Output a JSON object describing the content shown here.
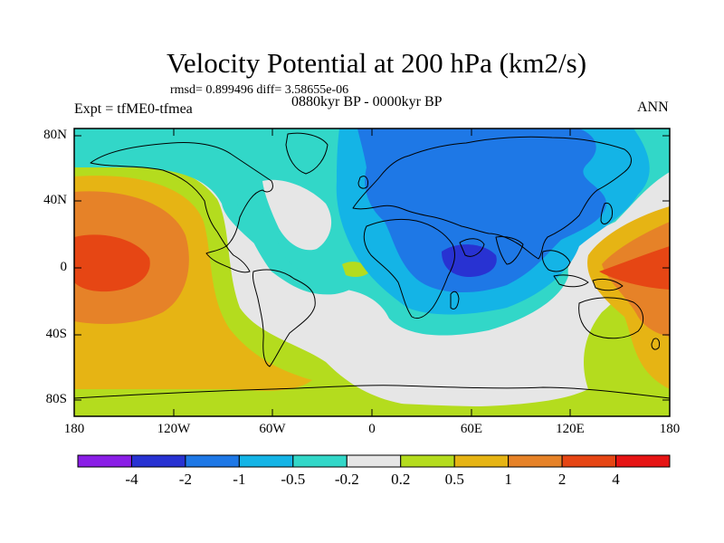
{
  "title": "Velocity Potential at 200 hPa (km2/s)",
  "stats_line": "rmsd= 0.899496 diff= 3.58655e-06",
  "experiment_label": "Expt = tfME0-tfmea",
  "period_label": "0880kyr BP - 0000kyr BP",
  "season_label": "ANN",
  "lat_labels": [
    "80N",
    "40N",
    "0",
    "40S",
    "80S"
  ],
  "lon_labels": [
    "180",
    "120W",
    "60W",
    "0",
    "60E",
    "120E",
    "180"
  ],
  "colorbar": {
    "labels": [
      "-4",
      "-2",
      "-1",
      "-0.5",
      "-0.2",
      "0.2",
      "0.5",
      "1",
      "2",
      "4"
    ],
    "colors": [
      "#8a1ee6",
      "#2832d2",
      "#1e78e6",
      "#14b4e6",
      "#32d7c8",
      "#e6e6e6",
      "#b4dc1e",
      "#e6b414",
      "#e68228",
      "#e64614",
      "#e61414"
    ]
  }
}
